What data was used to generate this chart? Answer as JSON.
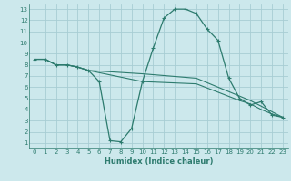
{
  "xlabel": "Humidex (Indice chaleur)",
  "bg_color": "#cce8ec",
  "line_color": "#2d7b6e",
  "grid_color": "#a8cdd4",
  "xlim": [
    -0.5,
    23.5
  ],
  "ylim": [
    0.5,
    13.5
  ],
  "xticks": [
    0,
    1,
    2,
    3,
    4,
    5,
    6,
    7,
    8,
    9,
    10,
    11,
    12,
    13,
    14,
    15,
    16,
    17,
    18,
    19,
    20,
    21,
    22,
    23
  ],
  "yticks": [
    1,
    2,
    3,
    4,
    5,
    6,
    7,
    8,
    9,
    10,
    11,
    12,
    13
  ],
  "series1_x": [
    0,
    1,
    2,
    3,
    4,
    5,
    6,
    7,
    8,
    9,
    10,
    11,
    12,
    13,
    14,
    15,
    16,
    17,
    18,
    19,
    20,
    21,
    22,
    23
  ],
  "series1_y": [
    8.5,
    8.5,
    8.0,
    8.0,
    7.8,
    7.5,
    6.5,
    1.2,
    1.1,
    2.3,
    6.5,
    9.5,
    12.2,
    13.0,
    13.0,
    12.6,
    11.2,
    10.2,
    6.8,
    5.0,
    4.4,
    4.7,
    3.5,
    3.3
  ],
  "series2_x": [
    0,
    1,
    2,
    3,
    4,
    5,
    10,
    15,
    19,
    20,
    21,
    22,
    23
  ],
  "series2_y": [
    8.5,
    8.5,
    8.0,
    8.0,
    7.8,
    7.5,
    7.2,
    6.8,
    5.2,
    4.8,
    4.3,
    3.8,
    3.3
  ],
  "series3_x": [
    0,
    1,
    2,
    3,
    4,
    5,
    10,
    15,
    19,
    20,
    21,
    22,
    23
  ],
  "series3_y": [
    8.5,
    8.5,
    8.0,
    8.0,
    7.8,
    7.5,
    6.5,
    6.3,
    4.8,
    4.5,
    4.0,
    3.6,
    3.3
  ]
}
